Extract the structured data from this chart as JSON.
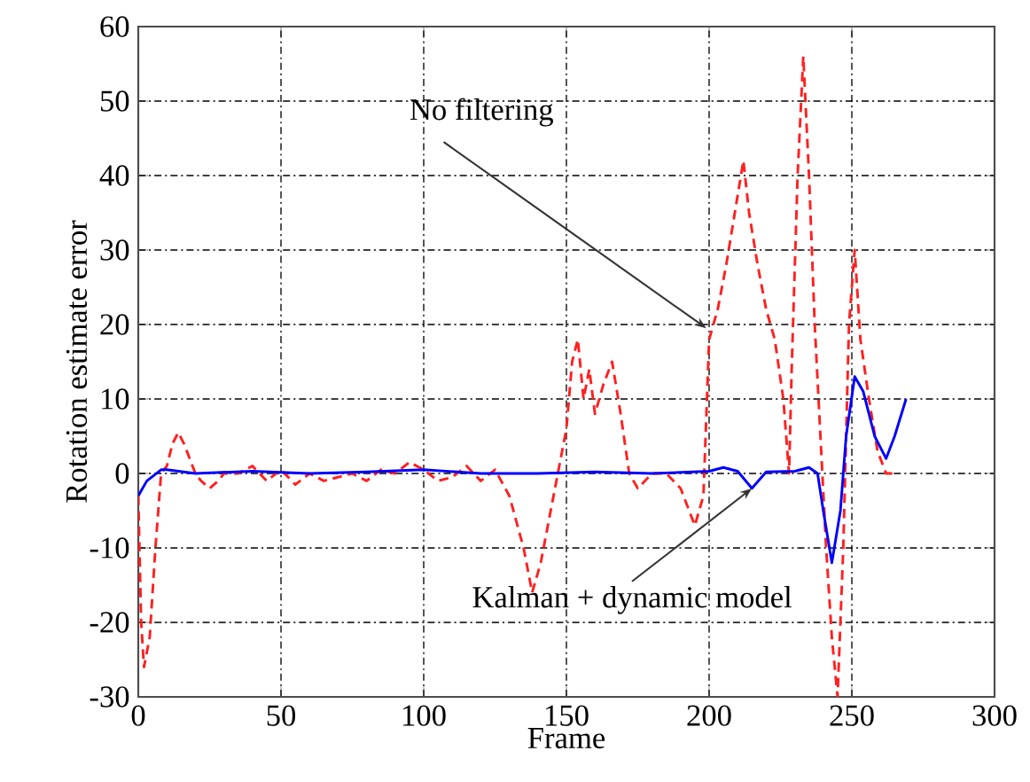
{
  "chart_data": {
    "type": "line",
    "xlabel": "Frame",
    "ylabel": "Rotation estimate error",
    "xlim": [
      0,
      300
    ],
    "ylim": [
      -30,
      60
    ],
    "xticks": [
      0,
      50,
      100,
      150,
      200,
      250,
      300
    ],
    "yticks": [
      -30,
      -20,
      -10,
      0,
      10,
      20,
      30,
      40,
      50,
      60
    ],
    "grid": true,
    "marker": "none",
    "series": [
      {
        "color": "#ff2020",
        "line_style": "dashed",
        "x": [
          0,
          1,
          2,
          4,
          6,
          8,
          10,
          12,
          14,
          16,
          18,
          20,
          22,
          25,
          28,
          30,
          35,
          40,
          45,
          50,
          55,
          60,
          65,
          70,
          75,
          80,
          85,
          90,
          95,
          100,
          105,
          110,
          115,
          120,
          125,
          130,
          135,
          138,
          141,
          144,
          147,
          150,
          152,
          154,
          156,
          158,
          160,
          163,
          166,
          169,
          172,
          175,
          180,
          185,
          190,
          195,
          198,
          200,
          203,
          206,
          209,
          212,
          214,
          217,
          220,
          223,
          226,
          228,
          229,
          231,
          233,
          235,
          237,
          239,
          241,
          243,
          245,
          247,
          249,
          251,
          253,
          256,
          259,
          262,
          266
        ],
        "values": [
          -3,
          -20,
          -26,
          -22,
          -10,
          0,
          1,
          4,
          5.5,
          4,
          2,
          0,
          -1,
          -2,
          -1,
          0,
          0,
          1,
          -1,
          0.5,
          -1.5,
          0,
          -1,
          -0.5,
          0,
          -1,
          0.5,
          0,
          1.5,
          0.5,
          -1,
          -0.5,
          1,
          -1,
          0.5,
          -3,
          -10,
          -16,
          -12,
          -6,
          0,
          6,
          15,
          18,
          10,
          14,
          8,
          12,
          15,
          8,
          0,
          -2,
          0,
          0,
          -2,
          -7,
          -3,
          18,
          22,
          28,
          35,
          42,
          35,
          28,
          22,
          18,
          10,
          0,
          15,
          40,
          56,
          40,
          20,
          5,
          -10,
          -22,
          -30,
          -10,
          20,
          30,
          18,
          10,
          3,
          0,
          0
        ]
      },
      {
        "color": "#0000ff",
        "line_style": "solid",
        "x": [
          0,
          3,
          8,
          10,
          20,
          40,
          60,
          80,
          100,
          120,
          140,
          160,
          180,
          200,
          205,
          210,
          215,
          220,
          230,
          235,
          238,
          240,
          243,
          246,
          248,
          251,
          254,
          258,
          262,
          265,
          269
        ],
        "values": [
          -3,
          -1,
          0.5,
          0.5,
          0,
          0.3,
          0,
          0.2,
          0.5,
          0,
          0,
          0.2,
          0,
          0.3,
          0.8,
          0.3,
          -2,
          0.2,
          0.3,
          0.8,
          0,
          -5,
          -12,
          -5,
          5,
          13,
          11,
          5,
          2,
          5,
          10
        ]
      }
    ],
    "annotations": [
      {
        "text": "No filtering",
        "x": 199,
        "y": 19.5
      },
      {
        "text": "Kalman + dynamic model",
        "x": 215,
        "y": -2
      }
    ]
  }
}
